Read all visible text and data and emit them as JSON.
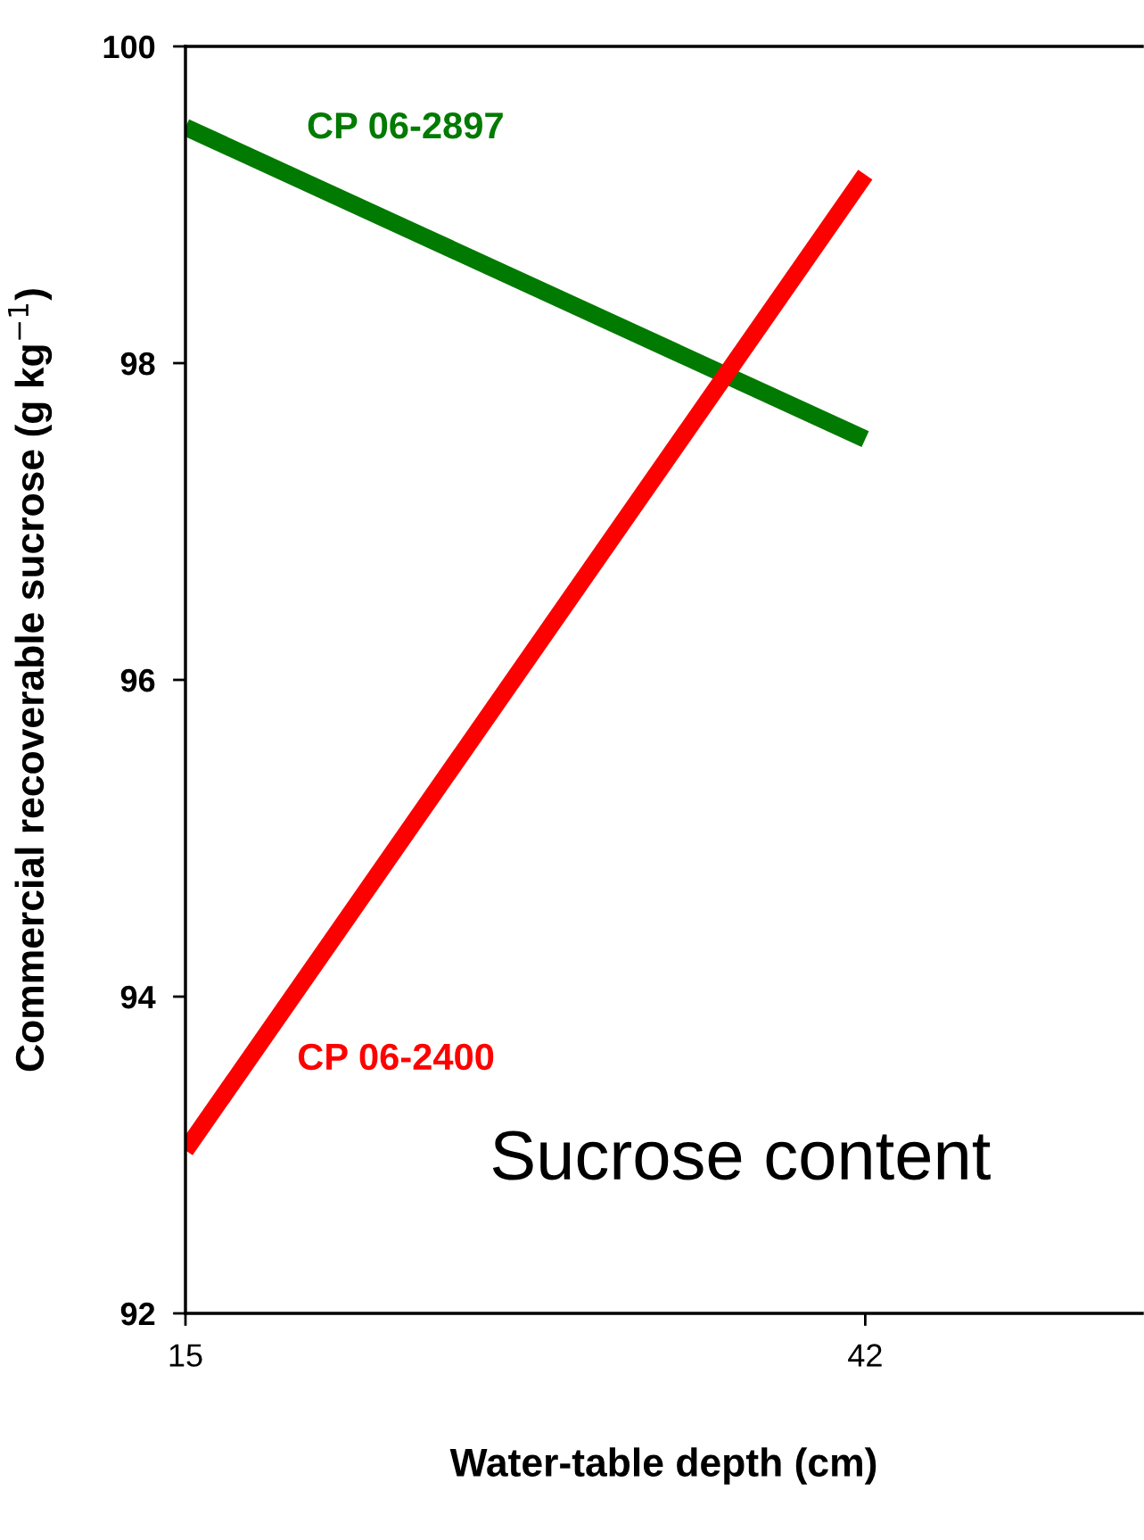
{
  "chart_data": {
    "type": "line",
    "xlabel": "Water-table depth (cm)",
    "ylabel": "Commercial recoverable sucrose (g kg$^{−1}$)",
    "x": [
      15,
      42
    ],
    "series": [
      {
        "name": "CP 06-2897",
        "color": "#007a00",
        "values": [
          99.49,
          97.52
        ]
      },
      {
        "name": "CP 06-2400",
        "color": "#ff0000",
        "values": [
          93.03,
          99.19
        ]
      }
    ],
    "xlim": [
      15,
      53
    ],
    "xticks": [
      15,
      42
    ],
    "ylim": [
      92,
      100
    ],
    "yticks": [
      92,
      94,
      96,
      98,
      100
    ],
    "grid": false,
    "legend": false,
    "marker": "none",
    "line_style": "solid",
    "annotations": [
      "Sucrose content"
    ]
  }
}
